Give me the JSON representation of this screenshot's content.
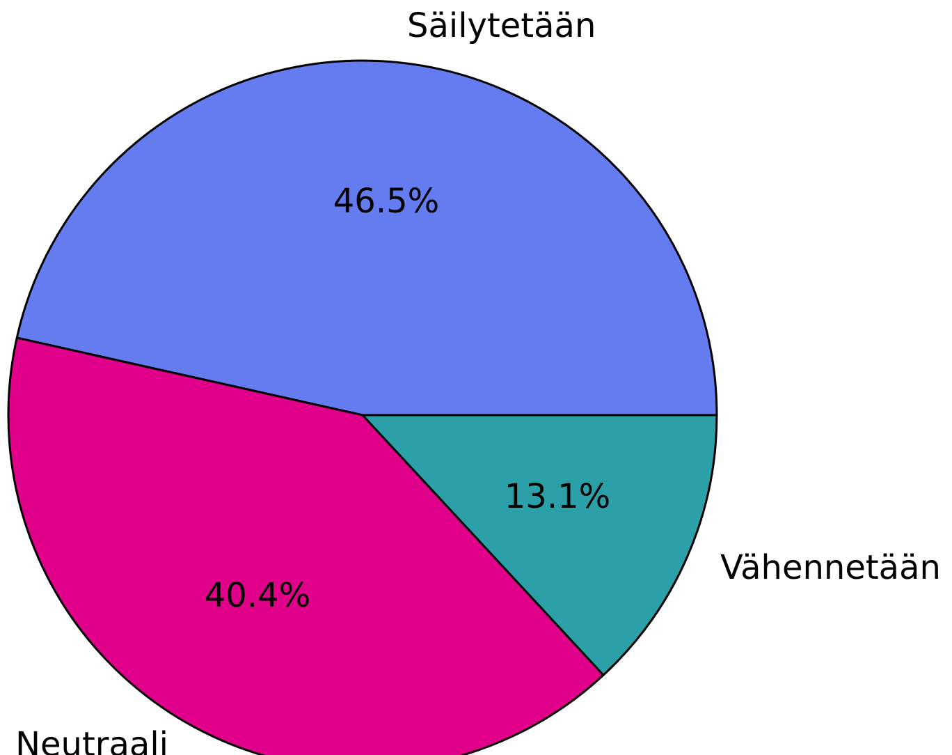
{
  "chart_data": {
    "type": "pie",
    "categories": [
      "Säilytetään",
      "Neutraali",
      "Vähennetään"
    ],
    "values": [
      46.5,
      40.4,
      13.1
    ],
    "value_labels": [
      "46.5%",
      "40.4%",
      "13.1%"
    ],
    "colors": [
      "#647cf0",
      "#e0008a",
      "#2ca0a8"
    ]
  }
}
